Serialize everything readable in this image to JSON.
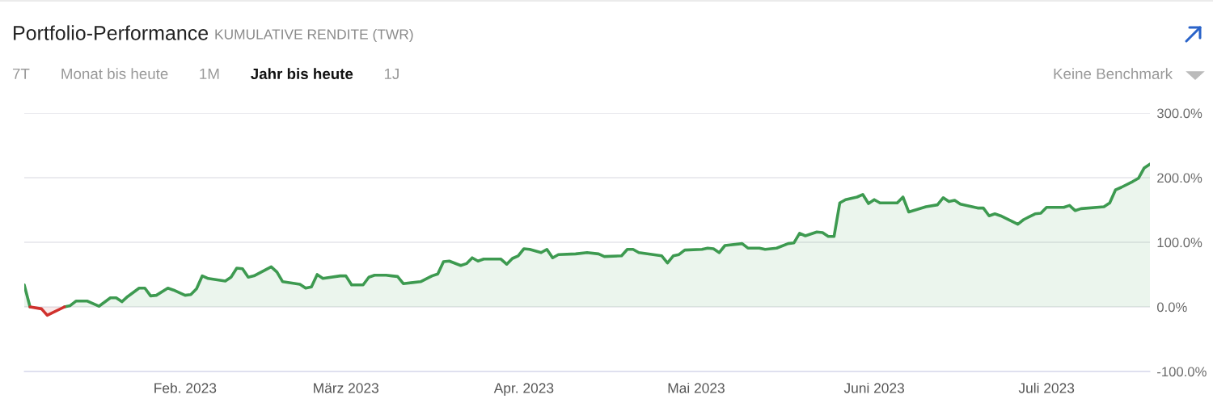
{
  "chart_data": {
    "type": "area",
    "title": "Portfolio-Performance",
    "subtitle": "KUMULATIVE RENDITE (TWR)",
    "annotations": [
      "7T",
      "Monat bis heute",
      "1M",
      "Jahr bis heute",
      "1J",
      "Keine Benchmark"
    ],
    "series": [
      {
        "color": "#3d9a50",
        "x": [
          "2023-01-04",
          "2023-01-05",
          "2023-01-08",
          "2023-01-11",
          "2023-01-12",
          "2023-01-13",
          "2023-01-15",
          "2023-01-17",
          "2023-01-19",
          "2023-01-20",
          "2023-01-21",
          "2023-01-22",
          "2023-01-24",
          "2023-01-25",
          "2023-01-26",
          "2023-01-27",
          "2023-01-29",
          "2023-01-30",
          "2023-02-01",
          "2023-02-02",
          "2023-02-03",
          "2023-02-04",
          "2023-02-05",
          "2023-02-08",
          "2023-02-09",
          "2023-02-10",
          "2023-02-11",
          "2023-02-12",
          "2023-02-13",
          "2023-02-16",
          "2023-02-17",
          "2023-02-18",
          "2023-02-21",
          "2023-02-22",
          "2023-02-23",
          "2023-02-24",
          "2023-02-25",
          "2023-02-28",
          "2023-03-01",
          "2023-03-02",
          "2023-03-04",
          "2023-03-05",
          "2023-03-06",
          "2023-03-08",
          "2023-03-09",
          "2023-03-10",
          "2023-03-11",
          "2023-03-14",
          "2023-03-16",
          "2023-03-17",
          "2023-03-18",
          "2023-03-19",
          "2023-03-21",
          "2023-03-22",
          "2023-03-23",
          "2023-03-24",
          "2023-03-25",
          "2023-03-28",
          "2023-03-29",
          "2023-03-30",
          "2023-03-31",
          "2023-04-01",
          "2023-04-02",
          "2023-04-04",
          "2023-04-05",
          "2023-04-06",
          "2023-04-07",
          "2023-04-10",
          "2023-04-12",
          "2023-04-14",
          "2023-04-15",
          "2023-04-18",
          "2023-04-19",
          "2023-04-20",
          "2023-04-21",
          "2023-04-25",
          "2023-04-26",
          "2023-04-27",
          "2023-04-28",
          "2023-04-29",
          "2023-05-02",
          "2023-05-03",
          "2023-05-04",
          "2023-05-05",
          "2023-05-06",
          "2023-05-09",
          "2023-05-10",
          "2023-05-12",
          "2023-05-13",
          "2023-05-15",
          "2023-05-17",
          "2023-05-18",
          "2023-05-19",
          "2023-05-20",
          "2023-05-22",
          "2023-05-23",
          "2023-05-24",
          "2023-05-25",
          "2023-05-26",
          "2023-05-27",
          "2023-05-29",
          "2023-05-30",
          "2023-05-31",
          "2023-06-01",
          "2023-06-02",
          "2023-06-05",
          "2023-06-06",
          "2023-06-07",
          "2023-06-10",
          "2023-06-12",
          "2023-06-13",
          "2023-06-14",
          "2023-06-15",
          "2023-06-16",
          "2023-06-19",
          "2023-06-20",
          "2023-06-21",
          "2023-06-22",
          "2023-06-23",
          "2023-06-26",
          "2023-06-27",
          "2023-06-29",
          "2023-06-30",
          "2023-07-01",
          "2023-07-04",
          "2023-07-05",
          "2023-07-06",
          "2023-07-07",
          "2023-07-11",
          "2023-07-12",
          "2023-07-13",
          "2023-07-14",
          "2023-07-16",
          "2023-07-17",
          "2023-07-18",
          "2023-07-19"
        ],
        "values": [
          34,
          0,
          null,
          0,
          2,
          9,
          9,
          1,
          14,
          14,
          8,
          16,
          29,
          29,
          17,
          18,
          29,
          26,
          18,
          19,
          28,
          48,
          44,
          40,
          46,
          60,
          59,
          46,
          48,
          62,
          54,
          39,
          35,
          29,
          31,
          50,
          44,
          48,
          48,
          34,
          34,
          46,
          49,
          49,
          48,
          47,
          36,
          39,
          48,
          51,
          70,
          71,
          64,
          67,
          76,
          71,
          74,
          74,
          66,
          75,
          79,
          90,
          89,
          84,
          89,
          76,
          81,
          82,
          84,
          82,
          78,
          79,
          89,
          89,
          84,
          79,
          68,
          79,
          81,
          88,
          89,
          91,
          90,
          84,
          95,
          98,
          91,
          91,
          89,
          91,
          98,
          99,
          114,
          110,
          116,
          115,
          109,
          109,
          161,
          166,
          170,
          174,
          160,
          166,
          161,
          161,
          170,
          147,
          155,
          158,
          169,
          163,
          165,
          159,
          153,
          153,
          141,
          144,
          141,
          128,
          135,
          144,
          145,
          154,
          154,
          157,
          149,
          152,
          155,
          161,
          181,
          185,
          194,
          199,
          215,
          221
        ]
      },
      {
        "color": "#d0312d",
        "x": [
          "2023-01-05",
          "2023-01-07",
          "2023-01-08",
          "2023-01-11"
        ],
        "values": [
          0,
          -3,
          -13,
          0
        ]
      }
    ],
    "xlim": [
      "2023-01-04",
      "2023-07-19"
    ],
    "xticks": [
      {
        "value": "2023-02-01",
        "label": "Feb. 2023"
      },
      {
        "value": "2023-03-01",
        "label": "März 2023"
      },
      {
        "value": "2023-04-01",
        "label": "Apr. 2023"
      },
      {
        "value": "2023-05-01",
        "label": "Mai 2023"
      },
      {
        "value": "2023-06-01",
        "label": "Juni 2023"
      },
      {
        "value": "2023-07-01",
        "label": "Juli 2023"
      }
    ],
    "ylim": [
      -100,
      300
    ],
    "yticks": [
      {
        "value": -100,
        "label": "-100.0%"
      },
      {
        "value": 0,
        "label": "0.0%"
      },
      {
        "value": 100,
        "label": "100.0%"
      },
      {
        "value": 200,
        "label": "200.0%"
      },
      {
        "value": 300,
        "label": "300.0%"
      }
    ],
    "grid": "y",
    "line_style": "solid"
  }
}
